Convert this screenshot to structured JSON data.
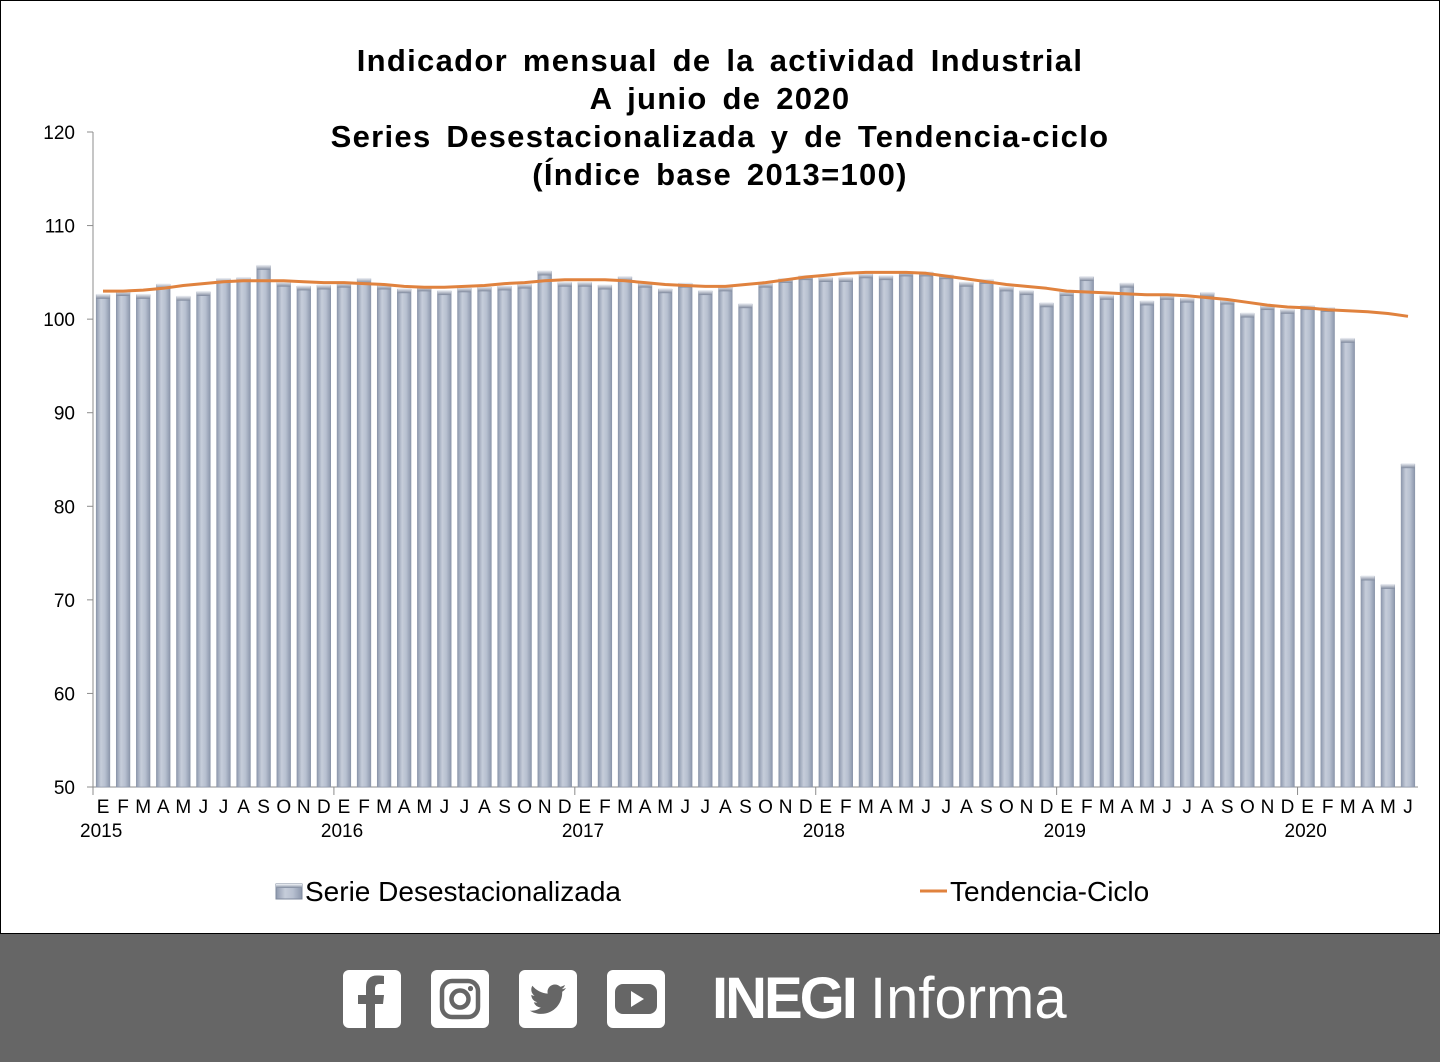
{
  "chart_data": {
    "type": "bar",
    "title": [
      "Indicador mensual de la actividad Industrial",
      "A junio de 2020",
      "Series Desestacionalizada y de Tendencia-ciclo",
      "(Índice base 2013=100)"
    ],
    "ylim": [
      50,
      120
    ],
    "yticks": [
      50,
      60,
      70,
      80,
      90,
      100,
      110,
      120
    ],
    "month_labels": [
      "E",
      "F",
      "M",
      "A",
      "M",
      "J",
      "J",
      "A",
      "S",
      "O",
      "N",
      "D",
      "E",
      "F",
      "M",
      "A",
      "M",
      "J",
      "J",
      "A",
      "S",
      "O",
      "N",
      "D",
      "E",
      "F",
      "M",
      "A",
      "M",
      "J",
      "J",
      "A",
      "S",
      "O",
      "N",
      "D",
      "E",
      "F",
      "M",
      "A",
      "M",
      "J",
      "J",
      "A",
      "S",
      "O",
      "N",
      "D",
      "E",
      "F",
      "M",
      "A",
      "M",
      "J",
      "J",
      "A",
      "S",
      "O",
      "N",
      "D",
      "E",
      "F",
      "M",
      "A",
      "M",
      "J"
    ],
    "year_labels": [
      {
        "label": "2015",
        "index": 0
      },
      {
        "label": "2016",
        "index": 12
      },
      {
        "label": "2017",
        "index": 24
      },
      {
        "label": "2018",
        "index": 36
      },
      {
        "label": "2019",
        "index": 48
      },
      {
        "label": "2020",
        "index": 60
      }
    ],
    "series": [
      {
        "name": "Serie Desestacionalizada",
        "kind": "bar",
        "color": "#B4BDCE",
        "values": [
          102.6,
          102.9,
          102.6,
          103.7,
          102.4,
          102.9,
          104.3,
          104.4,
          105.7,
          103.9,
          103.5,
          103.6,
          103.8,
          104.3,
          103.6,
          103.2,
          103.4,
          103.0,
          103.3,
          103.4,
          103.5,
          103.7,
          105.1,
          103.9,
          103.9,
          103.6,
          104.5,
          103.8,
          103.2,
          103.8,
          103.0,
          103.4,
          101.6,
          103.8,
          104.3,
          104.6,
          104.4,
          104.4,
          104.8,
          104.6,
          105.0,
          105.0,
          104.7,
          103.9,
          104.2,
          103.4,
          103.0,
          101.7,
          102.9,
          104.5,
          102.5,
          103.8,
          101.9,
          102.5,
          102.2,
          102.8,
          102.0,
          100.6,
          101.4,
          101.0,
          101.4,
          101.2,
          97.9,
          72.5,
          71.6,
          84.5
        ]
      },
      {
        "name": "Tendencia-Ciclo",
        "kind": "line",
        "color": "#E0823E",
        "values": [
          103.0,
          103.0,
          103.1,
          103.3,
          103.6,
          103.8,
          104.0,
          104.1,
          104.1,
          104.1,
          104.0,
          103.9,
          103.9,
          103.8,
          103.7,
          103.5,
          103.4,
          103.4,
          103.5,
          103.6,
          103.8,
          103.9,
          104.1,
          104.2,
          104.2,
          104.2,
          104.1,
          103.9,
          103.7,
          103.6,
          103.5,
          103.5,
          103.7,
          103.9,
          104.2,
          104.5,
          104.7,
          104.9,
          105.0,
          105.0,
          105.0,
          104.9,
          104.6,
          104.3,
          104.0,
          103.7,
          103.5,
          103.3,
          103.0,
          102.9,
          102.8,
          102.7,
          102.6,
          102.6,
          102.5,
          102.3,
          102.1,
          101.8,
          101.5,
          101.3,
          101.2,
          101.0,
          100.9,
          100.8,
          100.6,
          100.3
        ]
      }
    ],
    "legend": {
      "placement": "bottom"
    }
  },
  "footer": {
    "icons": [
      "facebook-icon",
      "instagram-icon",
      "twitter-icon",
      "youtube-icon"
    ],
    "brand_bold": "INEGI",
    "brand_light": "Informa",
    "background": "#666666"
  }
}
